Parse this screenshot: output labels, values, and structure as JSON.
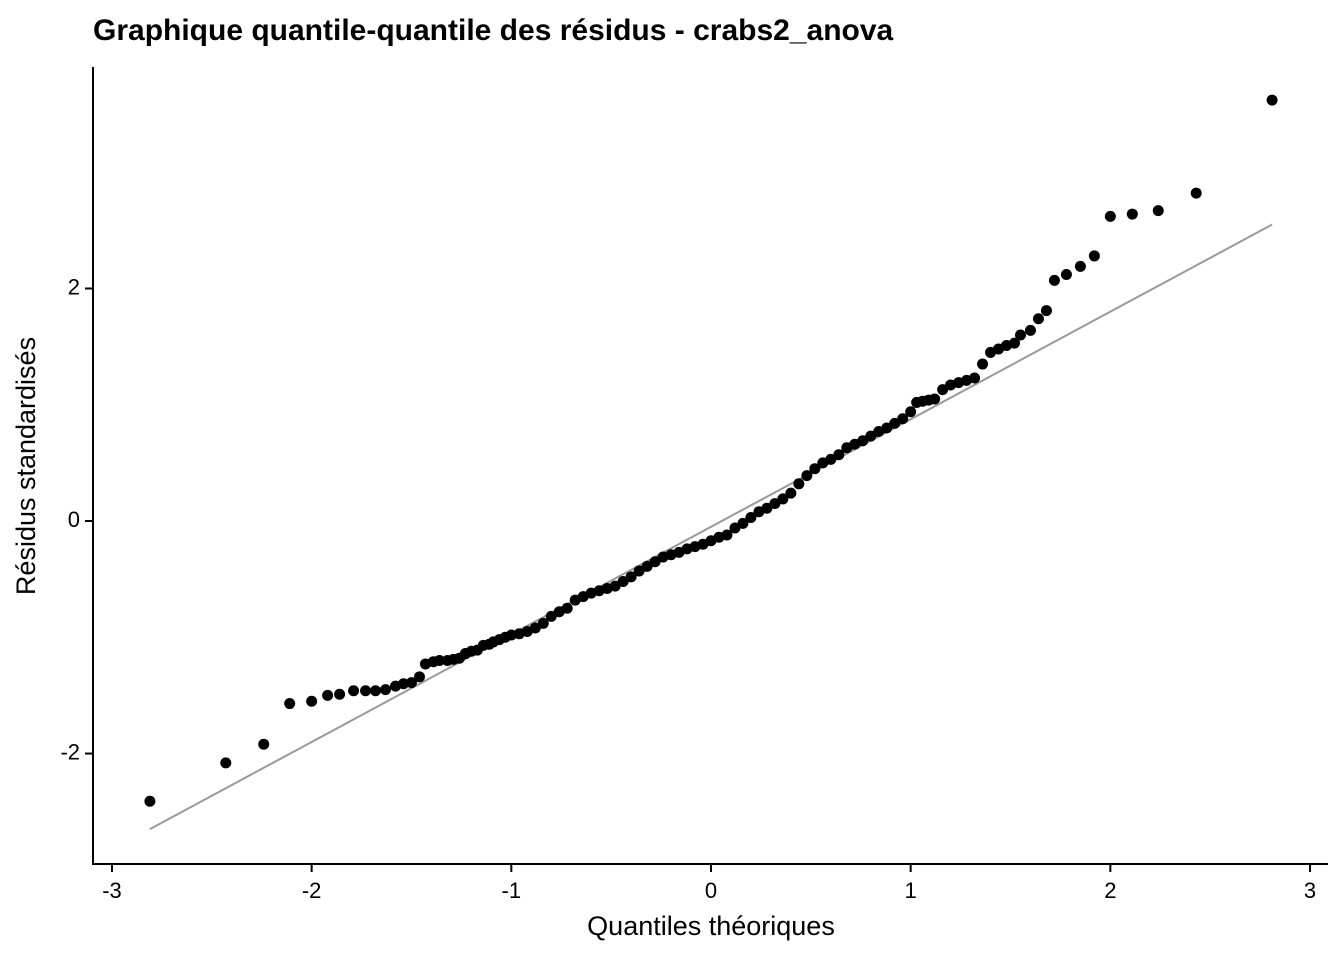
{
  "chart_data": {
    "type": "scatter",
    "title": "Graphique quantile-quantile des résidus - crabs2_anova",
    "x_label": "Quantiles théoriques",
    "y_label": "Résidus standardisés",
    "color": "#000000",
    "reference_line": {
      "color": "#999999",
      "x": [
        -2.81,
        2.81
      ],
      "y": [
        -2.65,
        2.55
      ]
    },
    "x": [
      -2.81,
      -2.43,
      -2.24,
      -2.11,
      -2.0,
      -1.92,
      -1.86,
      -1.79,
      -1.73,
      -1.68,
      -1.63,
      -1.58,
      -1.54,
      -1.5,
      -1.46,
      -1.43,
      -1.39,
      -1.36,
      -1.32,
      -1.29,
      -1.26,
      -1.23,
      -1.2,
      -1.17,
      -1.14,
      -1.11,
      -1.09,
      -1.06,
      -1.03,
      -1.0,
      -0.96,
      -0.92,
      -0.88,
      -0.84,
      -0.8,
      -0.76,
      -0.72,
      -0.68,
      -0.64,
      -0.6,
      -0.56,
      -0.52,
      -0.48,
      -0.44,
      -0.4,
      -0.36,
      -0.32,
      -0.28,
      -0.24,
      -0.2,
      -0.16,
      -0.12,
      -0.08,
      -0.04,
      0,
      0.04,
      0.08,
      0.12,
      0.16,
      0.2,
      0.24,
      0.28,
      0.32,
      0.36,
      0.4,
      0.44,
      0.48,
      0.52,
      0.56,
      0.6,
      0.64,
      0.68,
      0.72,
      0.76,
      0.8,
      0.84,
      0.88,
      0.92,
      0.96,
      1.0,
      1.03,
      1.06,
      1.09,
      1.12,
      1.16,
      1.2,
      1.24,
      1.28,
      1.32,
      1.36,
      1.4,
      1.44,
      1.48,
      1.52,
      1.55,
      1.6,
      1.64,
      1.68,
      1.72,
      1.78,
      1.85,
      1.92,
      2.0,
      2.11,
      2.24,
      2.43,
      2.81
    ],
    "values": [
      -2.41,
      -2.08,
      -1.92,
      -1.57,
      -1.55,
      -1.5,
      -1.49,
      -1.46,
      -1.46,
      -1.46,
      -1.45,
      -1.42,
      -1.4,
      -1.39,
      -1.34,
      -1.23,
      -1.21,
      -1.2,
      -1.2,
      -1.19,
      -1.18,
      -1.14,
      -1.12,
      -1.11,
      -1.07,
      -1.06,
      -1.04,
      -1.02,
      -1.0,
      -0.98,
      -0.97,
      -0.95,
      -0.92,
      -0.88,
      -0.82,
      -0.78,
      -0.75,
      -0.68,
      -0.65,
      -0.62,
      -0.6,
      -0.58,
      -0.56,
      -0.52,
      -0.48,
      -0.43,
      -0.39,
      -0.35,
      -0.31,
      -0.29,
      -0.27,
      -0.24,
      -0.22,
      -0.2,
      -0.17,
      -0.14,
      -0.12,
      -0.06,
      -0.02,
      0.03,
      0.08,
      0.11,
      0.15,
      0.19,
      0.24,
      0.32,
      0.39,
      0.45,
      0.5,
      0.53,
      0.57,
      0.63,
      0.66,
      0.69,
      0.73,
      0.77,
      0.8,
      0.84,
      0.88,
      0.94,
      1.02,
      1.03,
      1.04,
      1.05,
      1.13,
      1.17,
      1.19,
      1.21,
      1.23,
      1.35,
      1.45,
      1.48,
      1.51,
      1.53,
      1.6,
      1.64,
      1.74,
      1.81,
      2.07,
      2.12,
      2.19,
      2.28,
      2.62,
      2.64,
      2.67,
      2.82,
      3.62
    ],
    "xlim": [
      -3.095,
      3.09
    ],
    "ylim": [
      -2.95,
      3.905
    ],
    "xticks": [
      -3,
      -2,
      -1,
      0,
      1,
      2,
      3
    ],
    "yticks": [
      -2,
      0,
      2
    ]
  }
}
